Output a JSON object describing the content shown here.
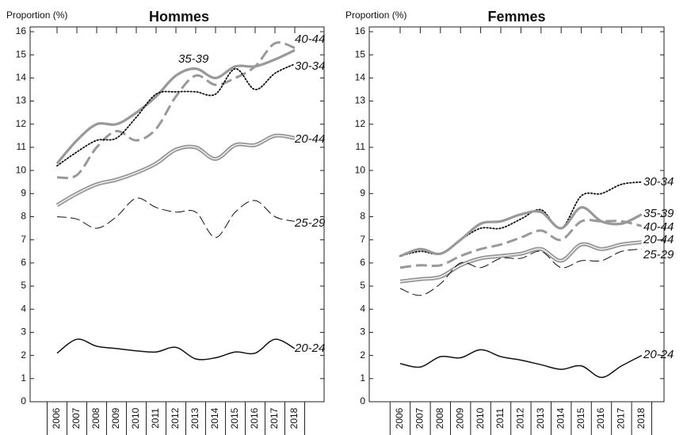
{
  "chart_data": [
    {
      "type": "line",
      "title": "Hommes",
      "y_label": "Proportion (%)",
      "categories": [
        "2006",
        "2007",
        "2008",
        "2009",
        "2010",
        "2011",
        "2012",
        "2013",
        "2014",
        "2015",
        "2016",
        "2017",
        "2018"
      ],
      "ylim": [
        0,
        16
      ],
      "yticks": [
        0,
        1,
        2,
        3,
        4,
        5,
        6,
        7,
        8,
        9,
        10,
        11,
        12,
        13,
        14,
        15,
        16
      ],
      "series": [
        {
          "name": "40-44",
          "color": "#999999",
          "dash": "dashed",
          "values": [
            9.7,
            9.8,
            11.0,
            11.7,
            11.3,
            11.8,
            13.2,
            14.1,
            13.7,
            14.0,
            14.5,
            15.5,
            15.3
          ]
        },
        {
          "name": "35-39",
          "color": "#999999",
          "dash": "solid",
          "values": [
            10.3,
            11.3,
            12.0,
            12.0,
            12.5,
            13.2,
            14.1,
            14.4,
            14.0,
            14.5,
            14.5,
            14.8,
            15.2
          ]
        },
        {
          "name": "30-34",
          "color": "#111111",
          "dash": "dotted",
          "values": [
            10.2,
            10.8,
            11.3,
            11.4,
            12.3,
            13.3,
            13.4,
            13.4,
            13.3,
            14.4,
            13.5,
            14.2,
            14.6
          ]
        },
        {
          "name": "20-44",
          "color": "#999999",
          "dash": "double",
          "values": [
            8.5,
            9.0,
            9.4,
            9.6,
            9.9,
            10.3,
            10.9,
            11.0,
            10.5,
            11.1,
            11.1,
            11.5,
            11.4
          ]
        },
        {
          "name": "25-29",
          "color": "#111111",
          "dash": "thin-dashed",
          "values": [
            8.0,
            7.9,
            7.5,
            8.0,
            8.8,
            8.4,
            8.2,
            8.2,
            7.1,
            8.2,
            8.7,
            8.0,
            7.8
          ]
        },
        {
          "name": "20-24",
          "color": "#111111",
          "dash": "thin",
          "values": [
            2.1,
            2.7,
            2.4,
            2.3,
            2.2,
            2.15,
            2.35,
            1.85,
            1.9,
            2.15,
            2.1,
            2.7,
            2.3
          ]
        }
      ]
    },
    {
      "type": "line",
      "title": "Femmes",
      "y_label": "Proportion (%)",
      "categories": [
        "2006",
        "2007",
        "2008",
        "2009",
        "2010",
        "2011",
        "2012",
        "2013",
        "2014",
        "2015",
        "2016",
        "2017",
        "2018"
      ],
      "ylim": [
        0,
        16
      ],
      "yticks": [
        0,
        1,
        2,
        3,
        4,
        5,
        6,
        7,
        8,
        9,
        10,
        11,
        12,
        13,
        14,
        15,
        16
      ],
      "series": [
        {
          "name": "30-34",
          "color": "#111111",
          "dash": "dotted",
          "values": [
            6.3,
            6.5,
            6.4,
            7.0,
            7.5,
            7.5,
            7.9,
            8.3,
            7.5,
            8.9,
            9.0,
            9.4,
            9.5
          ]
        },
        {
          "name": "35-39",
          "color": "#999999",
          "dash": "solid",
          "values": [
            6.3,
            6.6,
            6.4,
            7.0,
            7.7,
            7.8,
            8.1,
            8.2,
            7.5,
            8.4,
            7.8,
            7.7,
            8.1
          ]
        },
        {
          "name": "40-44",
          "color": "#999999",
          "dash": "dashed",
          "values": [
            5.8,
            5.9,
            5.9,
            6.3,
            6.6,
            6.8,
            7.1,
            7.4,
            7.0,
            7.8,
            7.8,
            7.8,
            7.6
          ]
        },
        {
          "name": "20-44",
          "color": "#999999",
          "dash": "double",
          "values": [
            5.2,
            5.3,
            5.4,
            5.9,
            6.2,
            6.3,
            6.4,
            6.6,
            6.1,
            6.8,
            6.6,
            6.8,
            6.9
          ]
        },
        {
          "name": "25-29",
          "color": "#111111",
          "dash": "thin-dashed",
          "values": [
            4.9,
            4.6,
            5.1,
            6.0,
            5.8,
            6.2,
            6.2,
            6.5,
            5.8,
            6.1,
            6.1,
            6.5,
            6.6
          ]
        },
        {
          "name": "20-24",
          "color": "#111111",
          "dash": "thin",
          "values": [
            1.65,
            1.5,
            1.95,
            1.9,
            2.25,
            1.95,
            1.8,
            1.6,
            1.4,
            1.55,
            1.05,
            1.55,
            2.0
          ]
        }
      ]
    }
  ]
}
